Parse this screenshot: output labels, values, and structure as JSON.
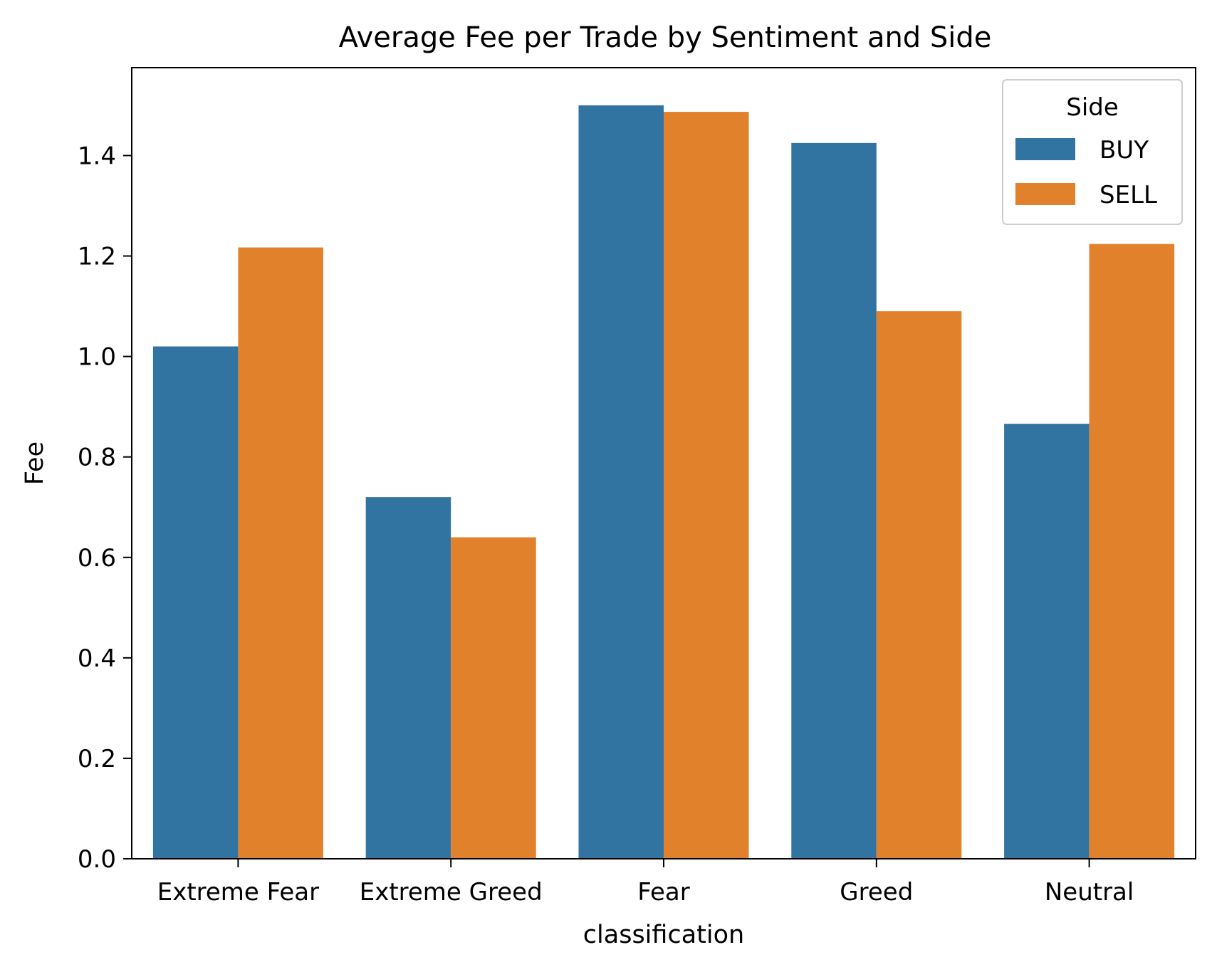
{
  "chart_data": {
    "type": "bar",
    "title": "Average Fee per Trade by Sentiment and Side",
    "xlabel": "classification",
    "ylabel": "Fee",
    "categories": [
      "Extreme Fear",
      "Extreme Greed",
      "Fear",
      "Greed",
      "Neutral"
    ],
    "series": [
      {
        "name": "BUY",
        "color": "#3274a1",
        "values": [
          1.02,
          0.72,
          1.5,
          1.425,
          0.866
        ]
      },
      {
        "name": "SELL",
        "color": "#e1812c",
        "values": [
          1.217,
          0.64,
          1.487,
          1.09,
          1.224
        ]
      }
    ],
    "ylim": [
      0,
      1.575
    ],
    "yticks": [
      0.0,
      0.2,
      0.4,
      0.6,
      0.8,
      1.0,
      1.2,
      1.4
    ],
    "ytick_labels": [
      "0.0",
      "0.2",
      "0.4",
      "0.6",
      "0.8",
      "1.0",
      "1.2",
      "1.4"
    ],
    "grid": false,
    "legend": {
      "title": "Side",
      "placement": "top-right"
    }
  }
}
